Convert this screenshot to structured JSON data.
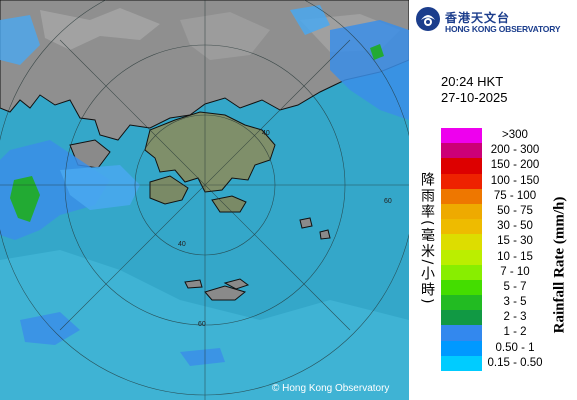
{
  "map": {
    "copyright": "© Hong Kong Observatory",
    "range_labels": [
      "40",
      "60",
      "40",
      "60"
    ]
  },
  "header": {
    "org_name_cn": "香港天文台",
    "org_name_en": "HONG KONG OBSERVATORY"
  },
  "timestamp": {
    "time": "20:24 HKT",
    "date": "27-10-2025"
  },
  "legend": {
    "title_cn": "降雨率(毫米/小時)",
    "title_en": "Rainfall Rate (mm/h)",
    "items": [
      {
        "label": ">300",
        "color": "#ee00ee"
      },
      {
        "label": "200 - 300",
        "color": "#cc0077"
      },
      {
        "label": "150 - 200",
        "color": "#dd0000"
      },
      {
        "label": "100 - 150",
        "color": "#ee2200"
      },
      {
        "label": "75 - 100",
        "color": "#ee7700"
      },
      {
        "label": "50 - 75",
        "color": "#eeaa00"
      },
      {
        "label": "30 - 50",
        "color": "#eebb00"
      },
      {
        "label": "15 - 30",
        "color": "#dddd00"
      },
      {
        "label": "10 - 15",
        "color": "#bbee00"
      },
      {
        "label": "7 - 10",
        "color": "#88ee00"
      },
      {
        "label": "5 - 7",
        "color": "#44dd00"
      },
      {
        "label": "3 - 5",
        "color": "#22bb22"
      },
      {
        "label": "2 - 3",
        "color": "#119944"
      },
      {
        "label": "1 - 2",
        "color": "#3388ee"
      },
      {
        "label": "0.50 - 1",
        "color": "#0099ff"
      },
      {
        "label": "0.15 - 0.50",
        "color": "#00ccff"
      }
    ]
  }
}
